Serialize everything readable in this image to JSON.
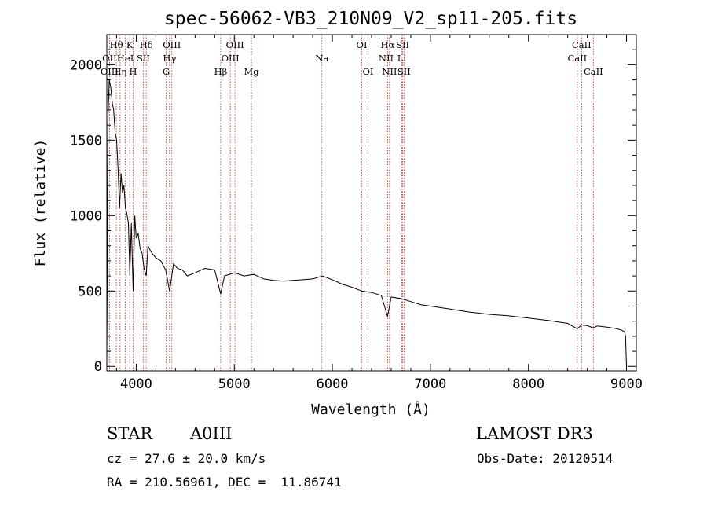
{
  "chart_data": {
    "type": "line",
    "title": "spec-56062-VB3_210N09_V2_sp11-205.fits",
    "xlabel": "Wavelength (Å)",
    "ylabel": "Flux (relative)",
    "xlim": [
      3700,
      9100
    ],
    "ylim": [
      -30,
      2200
    ],
    "xticks": [
      4000,
      5000,
      6000,
      7000,
      8000,
      9000
    ],
    "yticks": [
      0,
      500,
      1000,
      1500,
      2000
    ],
    "series": [
      {
        "name": "spectrum",
        "x": [
          3700,
          3712,
          3725,
          3740,
          3755,
          3770,
          3785,
          3800,
          3815,
          3830,
          3845,
          3860,
          3875,
          3890,
          3905,
          3920,
          3935,
          3950,
          3968,
          3985,
          4000,
          4020,
          4040,
          4060,
          4080,
          4102,
          4120,
          4150,
          4200,
          4250,
          4300,
          4340,
          4380,
          4420,
          4470,
          4520,
          4600,
          4700,
          4800,
          4861,
          4900,
          5000,
          5100,
          5200,
          5300,
          5400,
          5500,
          5600,
          5700,
          5800,
          5900,
          6000,
          6100,
          6200,
          6300,
          6400,
          6500,
          6563,
          6600,
          6700,
          6800,
          6900,
          7000,
          7200,
          7400,
          7600,
          7800,
          8000,
          8200,
          8400,
          8498,
          8542,
          8600,
          8662,
          8700,
          8800,
          8900,
          8950,
          8980,
          8990,
          9000
        ],
        "values": [
          50,
          1650,
          1900,
          1850,
          1750,
          1700,
          1550,
          1500,
          1300,
          1050,
          1280,
          1150,
          1200,
          1050,
          1010,
          950,
          600,
          950,
          500,
          1000,
          850,
          880,
          780,
          750,
          650,
          600,
          800,
          760,
          720,
          700,
          640,
          500,
          680,
          650,
          640,
          600,
          620,
          650,
          640,
          480,
          600,
          620,
          600,
          610,
          580,
          570,
          565,
          570,
          575,
          580,
          600,
          575,
          545,
          525,
          500,
          490,
          470,
          330,
          460,
          450,
          430,
          410,
          400,
          380,
          360,
          345,
          335,
          320,
          305,
          285,
          250,
          275,
          270,
          255,
          268,
          260,
          250,
          240,
          230,
          200,
          0
        ]
      }
    ],
    "spectral_lines": [
      {
        "label": "Hθ",
        "wavelength": 3797,
        "row": 1
      },
      {
        "label": "K",
        "wavelength": 3934,
        "row": 1
      },
      {
        "label": "Hδ",
        "wavelength": 4102,
        "row": 1
      },
      {
        "label": "OIII",
        "wavelength": 4363,
        "row": 1
      },
      {
        "label": "OIII",
        "wavelength": 5007,
        "row": 1
      },
      {
        "label": "OI",
        "wavelength": 6300,
        "row": 1
      },
      {
        "label": "Hα",
        "wavelength": 6563,
        "row": 1
      },
      {
        "label": "SII",
        "wavelength": 6717,
        "row": 1
      },
      {
        "label": "CaII",
        "wavelength": 8542,
        "row": 1
      },
      {
        "label": "OII",
        "wavelength": 3727,
        "row": 2
      },
      {
        "label": "HeI",
        "wavelength": 3889,
        "row": 2
      },
      {
        "label": "SII",
        "wavelength": 4072,
        "row": 2
      },
      {
        "label": "Hγ",
        "wavelength": 4340,
        "row": 2
      },
      {
        "label": "OIII",
        "wavelength": 4959,
        "row": 2
      },
      {
        "label": "Na",
        "wavelength": 5893,
        "row": 2
      },
      {
        "label": "NII",
        "wavelength": 6548,
        "row": 2
      },
      {
        "label": "Li",
        "wavelength": 6708,
        "row": 2
      },
      {
        "label": "CaII",
        "wavelength": 8498,
        "row": 2
      },
      {
        "label": "OIII",
        "wavelength": 3727,
        "row": 3
      },
      {
        "label": "Hη",
        "wavelength": 3835,
        "row": 3
      },
      {
        "label": "H",
        "wavelength": 3969,
        "row": 3
      },
      {
        "label": "G",
        "wavelength": 4305,
        "row": 3
      },
      {
        "label": "Hβ",
        "wavelength": 4861,
        "row": 3
      },
      {
        "label": "Mg",
        "wavelength": 5175,
        "row": 3
      },
      {
        "label": "OI",
        "wavelength": 6364,
        "row": 3
      },
      {
        "label": "NII",
        "wavelength": 6583,
        "row": 3
      },
      {
        "label": "SII",
        "wavelength": 6731,
        "row": 3
      },
      {
        "label": "CaII",
        "wavelength": 8662,
        "row": 3
      }
    ]
  },
  "info": {
    "object_class": "STAR",
    "subclass": "A0III",
    "survey": "LAMOST DR3",
    "redshift": "cz = 27.6 ± 20.0 km/s",
    "obs_date": "Obs-Date: 20120514",
    "coordinates": "RA = 210.56961, DEC =  11.86741"
  },
  "colors": {
    "spectrum": "#000000",
    "line_marker": "#c0392b"
  }
}
